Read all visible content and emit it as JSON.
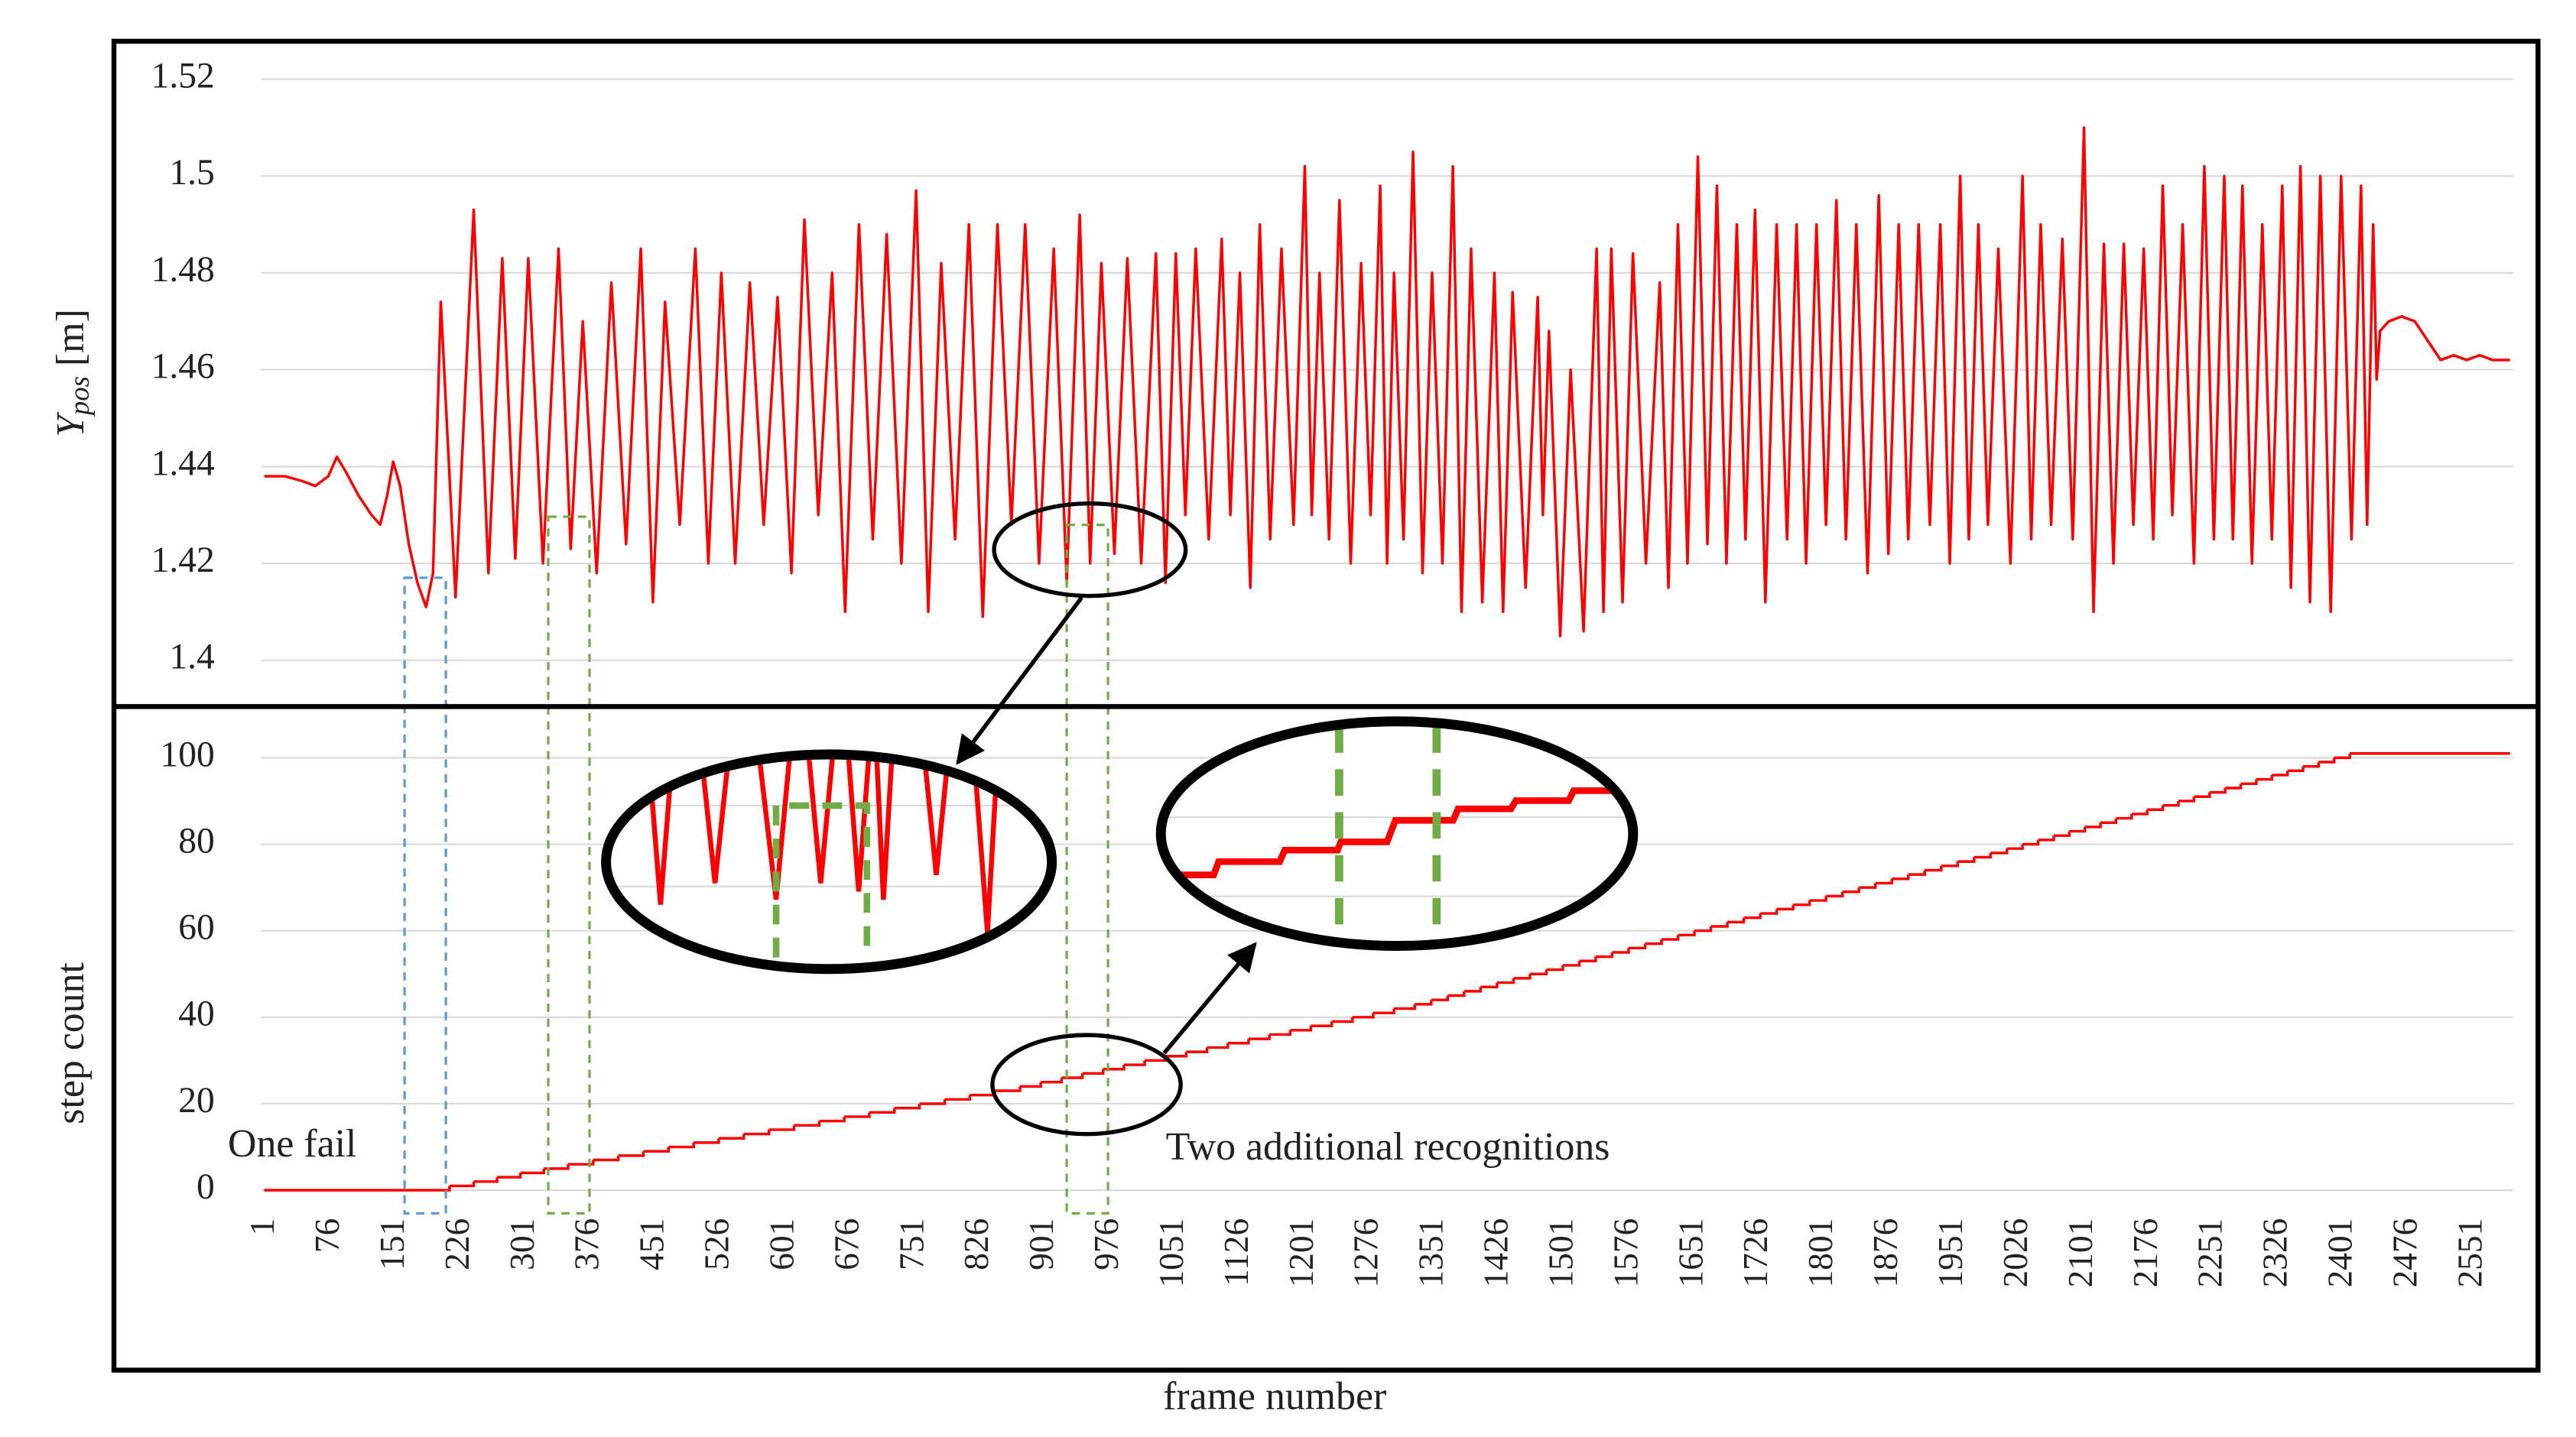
{
  "chart_data": [
    {
      "type": "line",
      "ylabel": {
        "symbol": "Y",
        "subscript": "pos",
        "unit": "[m]"
      },
      "color": "#ff0000",
      "xlim": [
        1,
        2595
      ],
      "ylim": [
        1.39,
        1.528
      ],
      "yticks": [
        1.4,
        1.42,
        1.44,
        1.46,
        1.48,
        1.5,
        1.52
      ],
      "grid": true,
      "x": [
        1,
        25,
        45,
        60,
        75,
        85,
        95,
        110,
        125,
        135,
        143,
        150,
        158,
        168,
        178,
        188,
        196,
        205,
        222,
        243,
        260,
        276,
        291,
        306,
        323,
        341,
        355,
        369,
        385,
        402,
        419,
        436,
        450,
        464,
        481,
        499,
        514,
        529,
        545,
        562,
        578,
        594,
        610,
        625,
        641,
        657,
        672,
        688,
        704,
        720,
        737,
        754,
        768,
        783,
        799,
        815,
        831,
        848,
        864,
        880,
        896,
        913,
        928,
        943,
        955,
        968,
        983,
        998,
        1014,
        1031,
        1042,
        1054,
        1065,
        1077,
        1092,
        1107,
        1117,
        1128,
        1140,
        1151,
        1163,
        1176,
        1190,
        1203,
        1211,
        1220,
        1231,
        1243,
        1256,
        1268,
        1279,
        1290,
        1298,
        1306,
        1317,
        1328,
        1339,
        1350,
        1362,
        1374,
        1384,
        1395,
        1408,
        1422,
        1432,
        1443,
        1458,
        1472,
        1478,
        1485,
        1498,
        1510,
        1525,
        1540,
        1548,
        1557,
        1570,
        1582,
        1597,
        1613,
        1623,
        1634,
        1645,
        1657,
        1668,
        1679,
        1690,
        1702,
        1712,
        1723,
        1735,
        1748,
        1760,
        1771,
        1782,
        1794,
        1805,
        1817,
        1828,
        1840,
        1853,
        1866,
        1877,
        1889,
        1900,
        1912,
        1925,
        1937,
        1948,
        1960,
        1970,
        1981,
        1992,
        2004,
        2018,
        2032,
        2042,
        2053,
        2065,
        2078,
        2090,
        2103,
        2114,
        2126,
        2137,
        2149,
        2160,
        2172,
        2183,
        2194,
        2205,
        2217,
        2230,
        2242,
        2253,
        2265,
        2275,
        2286,
        2297,
        2309,
        2320,
        2332,
        2342,
        2353,
        2364,
        2376,
        2388,
        2400,
        2412,
        2423,
        2430,
        2437,
        2441,
        2445,
        2455,
        2470,
        2485,
        2500,
        2515,
        2530,
        2545,
        2560,
        2575,
        2595
      ],
      "values": [
        1.438,
        1.438,
        1.437,
        1.436,
        1.438,
        1.442,
        1.439,
        1.434,
        1.43,
        1.428,
        1.434,
        1.441,
        1.436,
        1.424,
        1.416,
        1.411,
        1.418,
        1.474,
        1.413,
        1.493,
        1.418,
        1.483,
        1.421,
        1.483,
        1.42,
        1.485,
        1.423,
        1.47,
        1.418,
        1.478,
        1.424,
        1.485,
        1.412,
        1.474,
        1.428,
        1.485,
        1.42,
        1.48,
        1.42,
        1.478,
        1.428,
        1.475,
        1.418,
        1.491,
        1.43,
        1.48,
        1.41,
        1.49,
        1.425,
        1.488,
        1.42,
        1.497,
        1.41,
        1.482,
        1.425,
        1.49,
        1.409,
        1.49,
        1.428,
        1.49,
        1.42,
        1.485,
        1.416,
        1.492,
        1.42,
        1.482,
        1.422,
        1.483,
        1.42,
        1.484,
        1.416,
        1.484,
        1.43,
        1.485,
        1.425,
        1.487,
        1.43,
        1.48,
        1.415,
        1.49,
        1.425,
        1.485,
        1.428,
        1.502,
        1.43,
        1.48,
        1.425,
        1.495,
        1.42,
        1.482,
        1.43,
        1.498,
        1.42,
        1.48,
        1.425,
        1.505,
        1.418,
        1.48,
        1.42,
        1.502,
        1.41,
        1.485,
        1.412,
        1.48,
        1.41,
        1.476,
        1.415,
        1.475,
        1.43,
        1.468,
        1.405,
        1.46,
        1.406,
        1.485,
        1.41,
        1.485,
        1.412,
        1.484,
        1.42,
        1.478,
        1.415,
        1.49,
        1.42,
        1.504,
        1.424,
        1.498,
        1.42,
        1.49,
        1.425,
        1.493,
        1.412,
        1.49,
        1.425,
        1.49,
        1.42,
        1.49,
        1.428,
        1.495,
        1.425,
        1.49,
        1.418,
        1.496,
        1.422,
        1.49,
        1.425,
        1.49,
        1.428,
        1.49,
        1.42,
        1.5,
        1.425,
        1.49,
        1.428,
        1.485,
        1.42,
        1.5,
        1.425,
        1.49,
        1.428,
        1.487,
        1.425,
        1.51,
        1.41,
        1.486,
        1.42,
        1.486,
        1.428,
        1.485,
        1.425,
        1.498,
        1.43,
        1.49,
        1.42,
        1.502,
        1.425,
        1.5,
        1.425,
        1.498,
        1.42,
        1.49,
        1.425,
        1.498,
        1.415,
        1.502,
        1.412,
        1.5,
        1.41,
        1.5,
        1.425,
        1.498,
        1.428,
        1.49,
        1.458,
        1.468,
        1.47,
        1.471,
        1.47,
        1.466,
        1.462,
        1.463,
        1.462,
        1.463,
        1.462,
        1.462
      ]
    },
    {
      "type": "step",
      "xlabel": "frame number",
      "ylabel": "step count",
      "color": "#ff0000",
      "xlim": [
        1,
        2595
      ],
      "ylim": [
        0,
        112
      ],
      "yticks": [
        0,
        20,
        40,
        60,
        80,
        100
      ],
      "xticks": [
        1,
        76,
        151,
        226,
        301,
        376,
        451,
        526,
        601,
        676,
        751,
        826,
        901,
        976,
        1051,
        1126,
        1201,
        1276,
        1351,
        1426,
        1501,
        1576,
        1651,
        1726,
        1801,
        1876,
        1951,
        2026,
        2101,
        2176,
        2251,
        2326,
        2401,
        2476,
        2551
      ],
      "grid": true,
      "x": [
        1,
        215,
        243,
        270,
        297,
        324,
        352,
        381,
        410,
        439,
        468,
        497,
        526,
        555,
        584,
        613,
        642,
        671,
        700,
        729,
        758,
        787,
        816,
        845,
        874,
        898,
        922,
        946,
        970,
        994,
        1018,
        1042,
        1066,
        1090,
        1114,
        1138,
        1162,
        1186,
        1210,
        1234,
        1258,
        1282,
        1306,
        1330,
        1349,
        1368,
        1387,
        1406,
        1425,
        1444,
        1463,
        1482,
        1501,
        1520,
        1539,
        1558,
        1577,
        1596,
        1615,
        1634,
        1653,
        1672,
        1691,
        1710,
        1729,
        1748,
        1767,
        1786,
        1805,
        1824,
        1843,
        1862,
        1881,
        1900,
        1919,
        1938,
        1957,
        1976,
        1995,
        2014,
        2032,
        2050,
        2068,
        2086,
        2104,
        2122,
        2140,
        2158,
        2176,
        2194,
        2212,
        2230,
        2248,
        2266,
        2284,
        2302,
        2320,
        2338,
        2356,
        2374,
        2392,
        2410,
        2595
      ],
      "values": [
        0,
        1,
        2,
        3,
        4,
        5,
        6,
        7,
        8,
        9,
        10,
        11,
        12,
        13,
        14,
        15,
        16,
        17,
        18,
        19,
        20,
        21,
        22,
        23,
        24,
        25,
        26,
        27,
        28,
        29,
        30,
        31,
        32,
        33,
        34,
        35,
        36,
        37,
        38,
        39,
        40,
        41,
        42,
        43,
        44,
        45,
        46,
        47,
        48,
        49,
        50,
        51,
        52,
        53,
        54,
        55,
        56,
        57,
        58,
        59,
        60,
        61,
        62,
        63,
        64,
        65,
        66,
        67,
        68,
        69,
        70,
        71,
        72,
        73,
        74,
        75,
        76,
        77,
        78,
        79,
        80,
        81,
        82,
        83,
        84,
        85,
        86,
        87,
        88,
        89,
        90,
        91,
        92,
        93,
        94,
        95,
        96,
        97,
        98,
        99,
        100,
        101,
        101
      ],
      "annotations": [
        {
          "text": "One fail",
          "color": "#5b9bd5"
        },
        {
          "text": "Two additional recognitions",
          "color": "#70ad47"
        }
      ]
    }
  ]
}
